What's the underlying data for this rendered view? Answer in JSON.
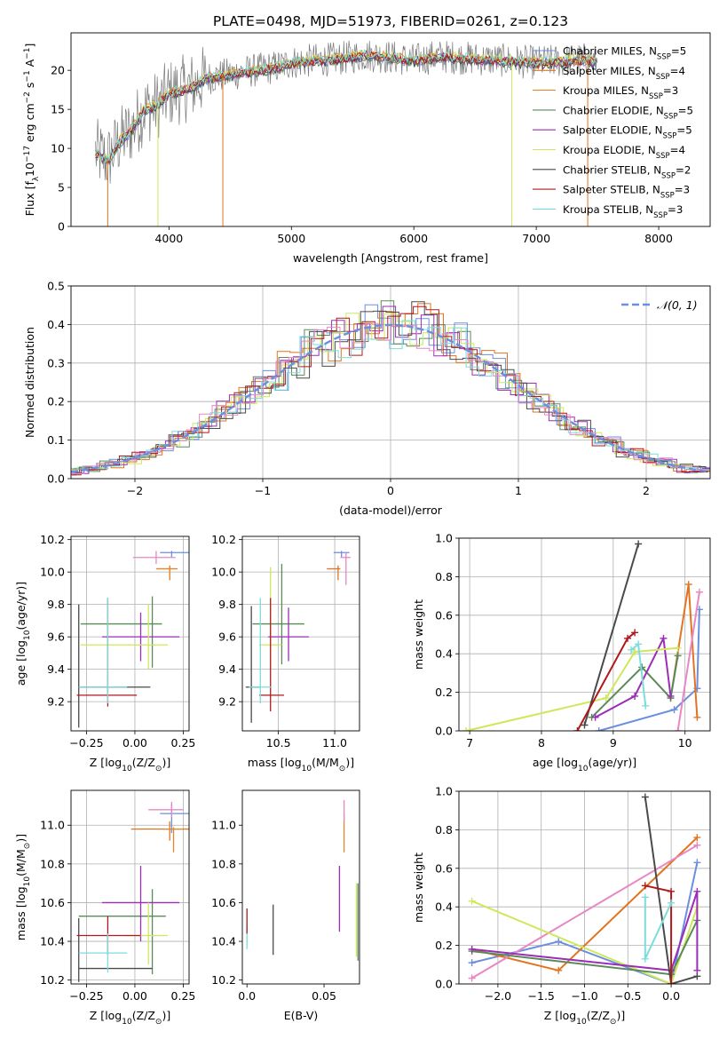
{
  "figure_title": "PLATE=0498, MJD=51973, FIBERID=0261, z=0.123",
  "colors": {
    "Chabrier MILES": "#6a8fe0",
    "Salpeter MILES": "#e2741f",
    "Kroupa MILES": "#e08a2c",
    "Chabrier ELODIE": "#5a8a5a",
    "Salpeter ELODIE": "#9b2db8",
    "Kroupa ELODIE": "#cfe85a",
    "Chabrier STELIB": "#4a4a4a",
    "Salpeter STELIB": "#b0191c",
    "Kroupa STELIB": "#7ddcdc",
    "pink": "#e887c4",
    "normal_curve": "#6a8fe0",
    "grid": "#b0b0b0"
  },
  "chart_data": [
    {
      "id": "spectrum",
      "type": "line",
      "xlabel": "wavelength [Angstrom, rest frame]",
      "ylabel": "Flux [f_λ10^-17 erg cm^-2 s^-1 A^-1]",
      "xlim": [
        3200,
        8420
      ],
      "ylim": [
        0,
        24.8
      ],
      "xticks": [
        4000,
        5000,
        6000,
        7000,
        8000
      ],
      "yticks": [
        0,
        5,
        10,
        15,
        20
      ],
      "grid": false,
      "legend_position": "top-right",
      "continuum": {
        "x": [
          3400,
          3500,
          3600,
          3700,
          3800,
          3900,
          4000,
          4100,
          4200,
          4300,
          4500,
          4700,
          4900,
          5000,
          5200,
          5400,
          5600,
          5800,
          6000,
          6200,
          6400,
          6600,
          6800,
          7000,
          7200,
          7400,
          7500
        ],
        "y": [
          9.5,
          8.5,
          11,
          12.5,
          15,
          15.5,
          17,
          17.5,
          18,
          19,
          19.5,
          20,
          20.5,
          21,
          21.3,
          21.5,
          22,
          21.7,
          21.3,
          21.8,
          21.6,
          21.4,
          21.2,
          21,
          21.2,
          21.4,
          21
        ]
      },
      "series": [
        {
          "name": "Chabrier MILES",
          "label": "Chabrier MILES, N",
          "sub": "SSP",
          "suffix": "=5"
        },
        {
          "name": "Salpeter MILES",
          "label": "Salpeter MILES, N",
          "sub": "SSP",
          "suffix": "=4"
        },
        {
          "name": "Kroupa MILES",
          "label": "Kroupa MILES, N",
          "sub": "SSP",
          "suffix": "=3"
        },
        {
          "name": "Chabrier ELODIE",
          "label": "Chabrier ELODIE, N",
          "sub": "SSP",
          "suffix": "=5"
        },
        {
          "name": "Salpeter ELODIE",
          "label": "Salpeter ELODIE, N",
          "sub": "SSP",
          "suffix": "=5"
        },
        {
          "name": "Kroupa ELODIE",
          "label": "Kroupa ELODIE, N",
          "sub": "SSP",
          "suffix": "=4"
        },
        {
          "name": "Chabrier STELIB",
          "label": "Chabrier STELIB, N",
          "sub": "SSP",
          "suffix": "=2"
        },
        {
          "name": "Salpeter STELIB",
          "label": "Salpeter STELIB, N",
          "sub": "SSP",
          "suffix": "=3"
        },
        {
          "name": "Kroupa STELIB",
          "label": "Kroupa STELIB, N",
          "sub": "SSP",
          "suffix": "=3"
        }
      ]
    },
    {
      "id": "residuals",
      "type": "line",
      "xlabel": "(data-model)/error",
      "ylabel": "Normed distribution",
      "xlim": [
        -2.5,
        2.5
      ],
      "ylim": [
        0,
        0.5
      ],
      "xticks": [
        -2,
        -1,
        0,
        1,
        2
      ],
      "yticks": [
        0.0,
        0.1,
        0.2,
        0.3,
        0.4,
        0.5
      ],
      "grid": true,
      "legend_position": "top-right",
      "legend_label": "𝒩(0, 1)",
      "normal_curve": {
        "mean": 0,
        "sigma": 1
      }
    },
    {
      "id": "age_vs_Z",
      "type": "scatter",
      "xlabel": "Z [log10(Z/Z⊙)]",
      "ylabel": "age  [log10(age/yr)]",
      "xlim": [
        -0.33,
        0.28
      ],
      "ylim": [
        9.02,
        10.22
      ],
      "xticks": [
        -0.25,
        0.0,
        0.25
      ],
      "xticklabels": [
        "-0.25",
        "0.00",
        "0.25"
      ],
      "yticks": [
        9.2,
        9.4,
        9.6,
        9.8,
        10.0,
        10.2
      ],
      "grid": true,
      "points": [
        {
          "s": "Chabrier MILES",
          "x": 0.19,
          "y": 10.12,
          "xerr": [
            0.06,
            0.09
          ],
          "yerr": [
            0.03,
            0.01
          ]
        },
        {
          "s": "Salpeter MILES",
          "x": 0.18,
          "y": 10.02,
          "xerr": [
            0.07,
            0.04
          ],
          "yerr": [
            0.07,
            0.02
          ]
        },
        {
          "s": "Kroupa MILES",
          "x": 0.18,
          "y": 10.02,
          "xerr": [
            0.07,
            0.03
          ],
          "yerr": [
            0.07,
            0.02
          ]
        },
        {
          "s": "pink",
          "x": 0.11,
          "y": 10.09,
          "xerr": [
            0.12,
            0.1
          ],
          "yerr": [
            0.04,
            0.04
          ]
        },
        {
          "s": "Chabrier ELODIE",
          "x": 0.09,
          "y": 9.68,
          "xerr": [
            0.37,
            0.05
          ],
          "yerr": [
            0.27,
            0.17
          ]
        },
        {
          "s": "Salpeter ELODIE",
          "x": 0.03,
          "y": 9.6,
          "xerr": [
            0.2,
            0.2
          ],
          "yerr": [
            0.15,
            0.15
          ]
        },
        {
          "s": "Kroupa ELODIE",
          "x": 0.07,
          "y": 9.55,
          "xerr": [
            0.35,
            0.1
          ],
          "yerr": [
            0.15,
            0.25
          ]
        },
        {
          "s": "Chabrier STELIB",
          "x": -0.29,
          "y": 9.29,
          "xerr": [
            0.0,
            0.37
          ],
          "yerr": [
            0.25,
            0.51
          ]
        },
        {
          "s": "Salpeter STELIB",
          "x": -0.14,
          "y": 9.24,
          "xerr": [
            0.16,
            0.15
          ],
          "yerr": [
            0.07,
            0.6
          ]
        },
        {
          "s": "Kroupa STELIB",
          "x": -0.14,
          "y": 9.29,
          "xerr": [
            0.15,
            0.1
          ],
          "yerr": [
            0.1,
            0.55
          ]
        }
      ]
    },
    {
      "id": "age_vs_mass",
      "type": "scatter",
      "xlabel": "mass [log10(M/M⊙)]",
      "ylabel": "",
      "xlim": [
        10.18,
        11.22
      ],
      "ylim": [
        9.02,
        10.22
      ],
      "xticks": [
        10.5,
        11.0
      ],
      "xticklabels": [
        "10.5",
        "11.0"
      ],
      "yticks": [
        9.2,
        9.4,
        9.6,
        9.8,
        10.0,
        10.2
      ],
      "grid": true,
      "points": [
        {
          "s": "Chabrier MILES",
          "x": 11.06,
          "y": 10.12,
          "xerr": [
            0.07,
            0.07
          ],
          "yerr": [
            0.03,
            0.01
          ]
        },
        {
          "s": "Salpeter MILES",
          "x": 11.03,
          "y": 10.02,
          "xerr": [
            0.1,
            0.02
          ],
          "yerr": [
            0.07,
            0.02
          ]
        },
        {
          "s": "pink",
          "x": 11.1,
          "y": 10.09,
          "xerr": [
            0.05,
            0.04
          ],
          "yerr": [
            0.17,
            0.03
          ]
        },
        {
          "s": "Chabrier ELODIE",
          "x": 10.53,
          "y": 9.68,
          "xerr": [
            0.26,
            0.2
          ],
          "yerr": [
            0.25,
            0.37
          ]
        },
        {
          "s": "Salpeter ELODIE",
          "x": 10.59,
          "y": 9.6,
          "xerr": [
            0.18,
            0.18
          ],
          "yerr": [
            0.15,
            0.18
          ]
        },
        {
          "s": "Kroupa ELODIE",
          "x": 10.43,
          "y": 9.55,
          "xerr": [
            0.1,
            0.1
          ],
          "yerr": [
            0.15,
            0.48
          ]
        },
        {
          "s": "Chabrier STELIB",
          "x": 10.26,
          "y": 9.29,
          "xerr": [
            0.05,
            0.08
          ],
          "yerr": [
            0.22,
            0.5
          ]
        },
        {
          "s": "Salpeter STELIB",
          "x": 10.43,
          "y": 9.24,
          "xerr": [
            0.1,
            0.12
          ],
          "yerr": [
            0.1,
            0.6
          ]
        },
        {
          "s": "Kroupa STELIB",
          "x": 10.34,
          "y": 9.29,
          "xerr": [
            0.1,
            0.1
          ],
          "yerr": [
            0.1,
            0.55
          ]
        }
      ]
    },
    {
      "id": "weight_vs_age",
      "type": "line",
      "xlabel": "age  [log10(age/yr)]",
      "ylabel": "mass weight",
      "xlim": [
        6.85,
        10.35
      ],
      "ylim": [
        0,
        1.0
      ],
      "xticks": [
        7,
        8,
        9,
        10
      ],
      "yticks": [
        0.0,
        0.2,
        0.4,
        0.6,
        0.8,
        1.0
      ],
      "grid": true,
      "series": [
        {
          "s": "Chabrier MILES",
          "x": [
            8.8,
            9.85,
            10.17,
            10.2
          ],
          "y": [
            0.0,
            0.11,
            0.22,
            0.63
          ]
        },
        {
          "s": "Salpeter MILES",
          "x": [
            9.8,
            10.05,
            10.17
          ],
          "y": [
            0.17,
            0.76,
            0.07
          ]
        },
        {
          "s": "Chabrier ELODIE",
          "x": [
            8.7,
            9.4,
            9.8,
            9.9
          ],
          "y": [
            0.07,
            0.33,
            0.17,
            0.39
          ]
        },
        {
          "s": "Salpeter ELODIE",
          "x": [
            8.75,
            9.3,
            9.7,
            9.8
          ],
          "y": [
            0.07,
            0.18,
            0.48,
            0.18
          ]
        },
        {
          "s": "Kroupa ELODIE",
          "x": [
            6.95,
            8.9,
            9.3,
            9.9
          ],
          "y": [
            0.0,
            0.17,
            0.41,
            0.43
          ]
        },
        {
          "s": "Chabrier STELIB",
          "x": [
            8.6,
            9.35
          ],
          "y": [
            0.03,
            0.97
          ]
        },
        {
          "s": "Salpeter STELIB",
          "x": [
            8.5,
            9.2,
            9.3
          ],
          "y": [
            0.0,
            0.48,
            0.51
          ]
        },
        {
          "s": "Kroupa STELIB",
          "x": [
            9.25,
            9.35,
            9.45
          ],
          "y": [
            0.42,
            0.45,
            0.13
          ]
        },
        {
          "s": "pink",
          "x": [
            9.9,
            10.2
          ],
          "y": [
            0.0,
            0.72
          ]
        }
      ]
    },
    {
      "id": "mass_vs_Z",
      "type": "scatter",
      "xlabel": "Z [log10(Z/Z⊙)]",
      "ylabel": "mass [log10(M/M⊙)]",
      "xlim": [
        -0.33,
        0.28
      ],
      "ylim": [
        10.18,
        11.18
      ],
      "xticks": [
        -0.25,
        0.0,
        0.25
      ],
      "xticklabels": [
        "-0.25",
        "0.00",
        "0.25"
      ],
      "yticks": [
        10.2,
        10.4,
        10.6,
        10.8,
        11.0
      ],
      "grid": true,
      "points": [
        {
          "s": "Chabrier MILES",
          "x": 0.19,
          "y": 11.06,
          "xerr": [
            0.06,
            0.09
          ],
          "yerr": [
            0.1,
            0.05
          ]
        },
        {
          "s": "Salpeter MILES",
          "x": 0.18,
          "y": 10.98,
          "xerr": [
            0.2,
            0.1
          ],
          "yerr": [
            0.06,
            0.04
          ]
        },
        {
          "s": "pink",
          "x": 0.19,
          "y": 11.08,
          "xerr": [
            0.12,
            0.06
          ],
          "yerr": [
            0.04,
            0.04
          ]
        },
        {
          "s": "Kroupa MILES",
          "x": 0.2,
          "y": 10.98,
          "xerr": [
            0.05,
            0.05
          ],
          "yerr": [
            0.12,
            0.01
          ]
        },
        {
          "s": "Chabrier ELODIE",
          "x": 0.09,
          "y": 10.53,
          "xerr": [
            0.38,
            0.07
          ],
          "yerr": [
            0.3,
            0.14
          ]
        },
        {
          "s": "Salpeter ELODIE",
          "x": 0.03,
          "y": 10.6,
          "xerr": [
            0.2,
            0.2
          ],
          "yerr": [
            0.2,
            0.19
          ]
        },
        {
          "s": "Kroupa ELODIE",
          "x": 0.07,
          "y": 10.43,
          "xerr": [
            0.12,
            0.1
          ],
          "yerr": [
            0.15,
            0.17
          ]
        },
        {
          "s": "Chabrier STELIB",
          "x": -0.29,
          "y": 10.26,
          "xerr": [
            0.0,
            0.38
          ],
          "yerr": [
            0.07,
            0.26
          ]
        },
        {
          "s": "Salpeter STELIB",
          "x": -0.14,
          "y": 10.43,
          "xerr": [
            0.16,
            0.17
          ],
          "yerr": [
            0.1,
            0.1
          ]
        },
        {
          "s": "Kroupa STELIB",
          "x": -0.14,
          "y": 10.34,
          "xerr": [
            0.15,
            0.1
          ],
          "yerr": [
            0.1,
            0.1
          ]
        }
      ]
    },
    {
      "id": "mass_vs_ebv",
      "type": "scatter",
      "xlabel": "E(B-V)",
      "ylabel": "",
      "xlim": [
        -0.003,
        0.073
      ],
      "ylim": [
        10.18,
        11.18
      ],
      "xticks": [
        0.0,
        0.05
      ],
      "xticklabels": [
        "0.0",
        "0.05"
      ],
      "yticks": [
        10.2,
        10.4,
        10.6,
        10.8,
        11.0
      ],
      "grid": false,
      "points": [
        {
          "s": "Kroupa STELIB",
          "x": 0.0,
          "y": 10.42,
          "xerr": [
            0,
            0
          ],
          "yerr": [
            0.06,
            0.06
          ]
        },
        {
          "s": "Salpeter STELIB",
          "x": 0.0,
          "y": 10.5,
          "xerr": [
            0,
            0
          ],
          "yerr": [
            0.06,
            0.07
          ]
        },
        {
          "s": "Chabrier STELIB",
          "x": 0.017,
          "y": 10.43,
          "xerr": [
            0,
            0
          ],
          "yerr": [
            0.1,
            0.16
          ]
        },
        {
          "s": "Salpeter ELODIE",
          "x": 0.06,
          "y": 10.62,
          "xerr": [
            0,
            0
          ],
          "yerr": [
            0.17,
            0.17
          ]
        },
        {
          "s": "Kroupa MILES",
          "x": 0.063,
          "y": 10.98,
          "xerr": [
            0,
            0
          ],
          "yerr": [
            0.12,
            0.08
          ]
        },
        {
          "s": "pink",
          "x": 0.063,
          "y": 11.06,
          "xerr": [
            0,
            0
          ],
          "yerr": [
            0.04,
            0.07
          ]
        },
        {
          "s": "Kroupa ELODIE",
          "x": 0.071,
          "y": 10.5,
          "xerr": [
            0,
            0
          ],
          "yerr": [
            0.18,
            0.2
          ]
        },
        {
          "s": "Chabrier ELODIE",
          "x": 0.072,
          "y": 10.5,
          "xerr": [
            0,
            0
          ],
          "yerr": [
            0.2,
            0.2
          ]
        }
      ]
    },
    {
      "id": "weight_vs_Z",
      "type": "line",
      "xlabel": "Z [log10(Z/Z⊙)]",
      "ylabel": "mass weight",
      "xlim": [
        -2.45,
        0.45
      ],
      "ylim": [
        0,
        1.0
      ],
      "xticks": [
        -2.0,
        -1.5,
        -1.0,
        -0.5,
        0.0
      ],
      "xticklabels": [
        "-2.0",
        "-1.5",
        "-1.0",
        "-0.5",
        "0.0"
      ],
      "yticks": [
        0.0,
        0.2,
        0.4,
        0.6,
        0.8,
        1.0
      ],
      "grid": true,
      "series": [
        {
          "s": "Chabrier MILES",
          "x": [
            -2.3,
            -1.3,
            0.0,
            0.3
          ],
          "y": [
            0.11,
            0.22,
            0.0,
            0.63
          ]
        },
        {
          "s": "Salpeter MILES",
          "x": [
            -2.3,
            -1.3,
            0.3
          ],
          "y": [
            0.18,
            0.07,
            0.76
          ]
        },
        {
          "s": "pink",
          "x": [
            -2.3,
            0.3
          ],
          "y": [
            0.03,
            0.72
          ]
        },
        {
          "s": "Kroupa ELODIE",
          "x": [
            -2.3,
            0.0,
            0.3
          ],
          "y": [
            0.43,
            0.0,
            0.4
          ]
        },
        {
          "s": "Chabrier ELODIE",
          "x": [
            -2.3,
            0.0,
            0.3
          ],
          "y": [
            0.17,
            0.05,
            0.33
          ]
        },
        {
          "s": "Salpeter ELODIE",
          "x": [
            -2.3,
            0.0,
            0.3,
            0.3
          ],
          "y": [
            0.18,
            0.07,
            0.48,
            0.07
          ]
        },
        {
          "s": "Chabrier STELIB",
          "x": [
            -0.3,
            0.0,
            0.3
          ],
          "y": [
            0.97,
            0.0,
            0.04
          ]
        },
        {
          "s": "Salpeter STELIB",
          "x": [
            -0.3,
            0.0,
            0.0
          ],
          "y": [
            0.51,
            0.48,
            0.0
          ]
        },
        {
          "s": "Kroupa STELIB",
          "x": [
            -0.3,
            -0.3,
            0.0
          ],
          "y": [
            0.45,
            0.13,
            0.42
          ]
        }
      ]
    }
  ]
}
